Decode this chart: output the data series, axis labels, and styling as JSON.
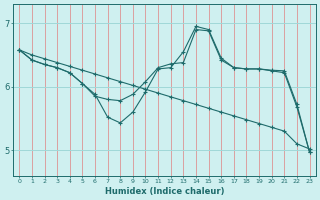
{
  "xlabel": "Humidex (Indice chaleur)",
  "ylabel": "",
  "bg_color": "#cff0f0",
  "line_color": "#1e6b6b",
  "grid_color_v": "#e08080",
  "grid_color_h": "#a0d8d8",
  "xlim": [
    -0.5,
    23.5
  ],
  "ylim": [
    4.6,
    7.3
  ],
  "yticks": [
    5,
    6,
    7
  ],
  "xticks": [
    0,
    1,
    2,
    3,
    4,
    5,
    6,
    7,
    8,
    9,
    10,
    11,
    12,
    13,
    14,
    15,
    16,
    17,
    18,
    19,
    20,
    21,
    22,
    23
  ],
  "line1_x": [
    0,
    1,
    2,
    3,
    4,
    5,
    6,
    7,
    8,
    9,
    10,
    11,
    12,
    13,
    14,
    15,
    16,
    17,
    18,
    19,
    20,
    21,
    22,
    23
  ],
  "line1_y": [
    6.58,
    6.42,
    6.35,
    6.3,
    6.22,
    6.05,
    5.88,
    5.52,
    5.43,
    5.6,
    5.92,
    6.28,
    6.3,
    6.55,
    6.95,
    6.9,
    6.45,
    6.3,
    6.28,
    6.28,
    6.26,
    6.25,
    5.72,
    4.97
  ],
  "line2_x": [
    0,
    1,
    2,
    3,
    4,
    5,
    6,
    7,
    8,
    9,
    10,
    11,
    12,
    13,
    14,
    15,
    16,
    17,
    18,
    19,
    20,
    21,
    22,
    23
  ],
  "line2_y": [
    6.58,
    6.42,
    6.35,
    6.3,
    6.22,
    6.05,
    5.85,
    5.8,
    5.78,
    5.88,
    6.08,
    6.3,
    6.36,
    6.38,
    6.9,
    6.88,
    6.42,
    6.3,
    6.28,
    6.28,
    6.25,
    6.22,
    5.68,
    4.97
  ],
  "line3_x": [
    0,
    1,
    2,
    3,
    4,
    5,
    6,
    7,
    8,
    9,
    10,
    11,
    12,
    13,
    14,
    15,
    16,
    17,
    18,
    19,
    20,
    21,
    22,
    23
  ],
  "line3_y": [
    6.58,
    6.5,
    6.44,
    6.38,
    6.32,
    6.26,
    6.2,
    6.14,
    6.08,
    6.02,
    5.96,
    5.9,
    5.84,
    5.78,
    5.72,
    5.66,
    5.6,
    5.54,
    5.48,
    5.42,
    5.36,
    5.3,
    5.1,
    5.02
  ]
}
